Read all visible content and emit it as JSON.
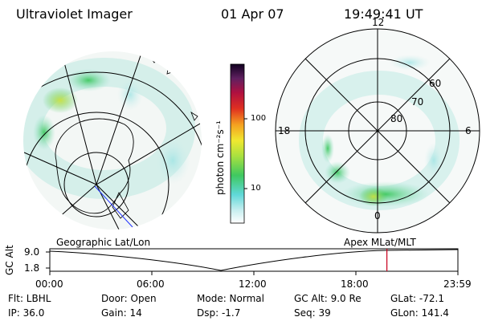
{
  "header": {
    "instrument": "Ultraviolet Imager",
    "date": "01 Apr 07",
    "time": "19:49:41 UT"
  },
  "colorbar": {
    "unit_label": "photon cm⁻²s⁻¹",
    "ticks": [
      "100",
      "10"
    ]
  },
  "polar_plot": {
    "mlt_labels": [
      "12",
      "18",
      "6",
      "0"
    ],
    "lat_labels": [
      "60",
      "70",
      "80"
    ]
  },
  "timeline": {
    "left_title": "Geographic Lat/Lon",
    "right_title": "Apex  MLat/MLT",
    "y_axis_label": "GC Alt",
    "y_ticks": [
      "9.0",
      "1.8"
    ],
    "x_ticks": [
      "00:00",
      "06:00",
      "12:00",
      "18:00",
      "23:59"
    ],
    "current_time_fraction": 0.826
  },
  "info": {
    "flt": "Flt: LBHL",
    "ip": "IP: 36.0",
    "door": "Door: Open",
    "gain": "Gain: 14",
    "mode": "Mode: Normal",
    "dsp": "Dsp:    -1.7",
    "gcalt": "GC Alt: 9.0 Re",
    "seq": "Seq: 39",
    "glat": "GLat: -72.1",
    "glon": "GLon: 141.4"
  },
  "colors": {
    "marker": "#c8001e",
    "aurora_green": "#4fd36a",
    "aurora_cyan": "#5fd8d8"
  }
}
